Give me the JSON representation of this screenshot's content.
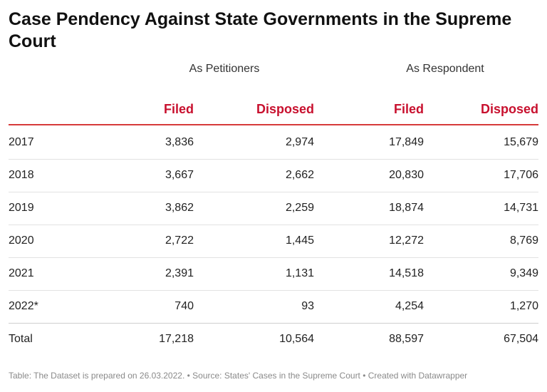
{
  "chart_data": {
    "type": "table",
    "title": "Case Pendency Against State Governments in the Supreme Court",
    "group_headers": [
      "As Petitioners",
      "As Respondent"
    ],
    "columns": [
      "",
      "Filed",
      "Disposed",
      "Filed",
      "Disposed"
    ],
    "rows": [
      {
        "year": "2017",
        "values": [
          "3,836",
          "2,974",
          "17,849",
          "15,679"
        ]
      },
      {
        "year": "2018",
        "values": [
          "3,667",
          "2,662",
          "20,830",
          "17,706"
        ]
      },
      {
        "year": "2019",
        "values": [
          "3,862",
          "2,259",
          "18,874",
          "14,731"
        ]
      },
      {
        "year": "2020",
        "values": [
          "2,722",
          "1,445",
          "12,272",
          "8,769"
        ]
      },
      {
        "year": "2021",
        "values": [
          "2,391",
          "1,131",
          "14,518",
          "9,349"
        ]
      },
      {
        "year": "2022*",
        "values": [
          "740",
          "93",
          "4,254",
          "1,270"
        ]
      }
    ],
    "total": {
      "year": "Total",
      "values": [
        "17,218",
        "10,564",
        "88,597",
        "67,504"
      ]
    },
    "footer": "Table: The Dataset is prepared on 26.03.2022. • Source: States' Cases in the Supreme Court • Created with Datawrapper"
  },
  "colors": {
    "header_text": "#c8102e",
    "header_rule": "#d63a3a"
  }
}
